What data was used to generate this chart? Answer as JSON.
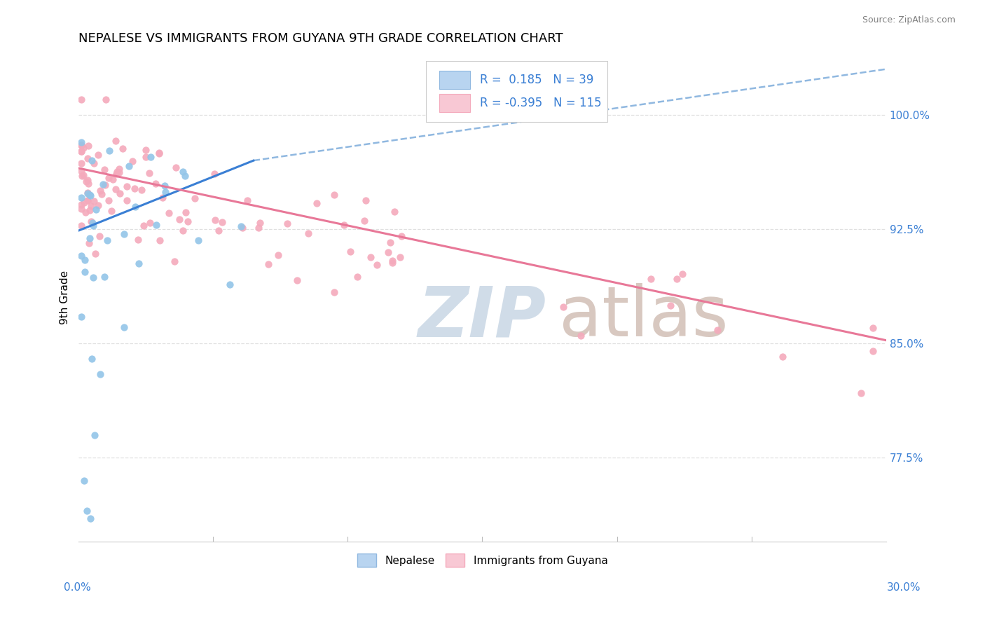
{
  "title": "NEPALESE VS IMMIGRANTS FROM GUYANA 9TH GRADE CORRELATION CHART",
  "source": "Source: ZipAtlas.com",
  "ylabel": "9th Grade",
  "ytick_labels": [
    "77.5%",
    "85.0%",
    "92.5%",
    "100.0%"
  ],
  "ytick_values": [
    0.775,
    0.85,
    0.925,
    1.0
  ],
  "xlim": [
    0.0,
    0.3
  ],
  "ylim": [
    0.72,
    1.04
  ],
  "R_blue": 0.185,
  "N_blue": 39,
  "R_pink": -0.395,
  "N_pink": 115,
  "blue_dot_color": "#93C5E8",
  "pink_dot_color": "#F4AABC",
  "blue_line_color": "#3A7FD4",
  "pink_line_color": "#E87898",
  "blue_dash_color": "#90B8E0",
  "legend_box_blue_fill": "#B8D4F0",
  "legend_box_pink_fill": "#F8C8D4",
  "legend_box_blue_edge": "#90B8E0",
  "legend_box_pink_edge": "#F4AABC",
  "watermark_zip_color": "#D0DCE8",
  "watermark_atlas_color": "#D8C8C0",
  "grid_color": "#E0E0E0",
  "title_fontsize": 13,
  "source_fontsize": 9,
  "tick_label_fontsize": 11,
  "ylabel_fontsize": 11,
  "legend_fontsize": 12
}
